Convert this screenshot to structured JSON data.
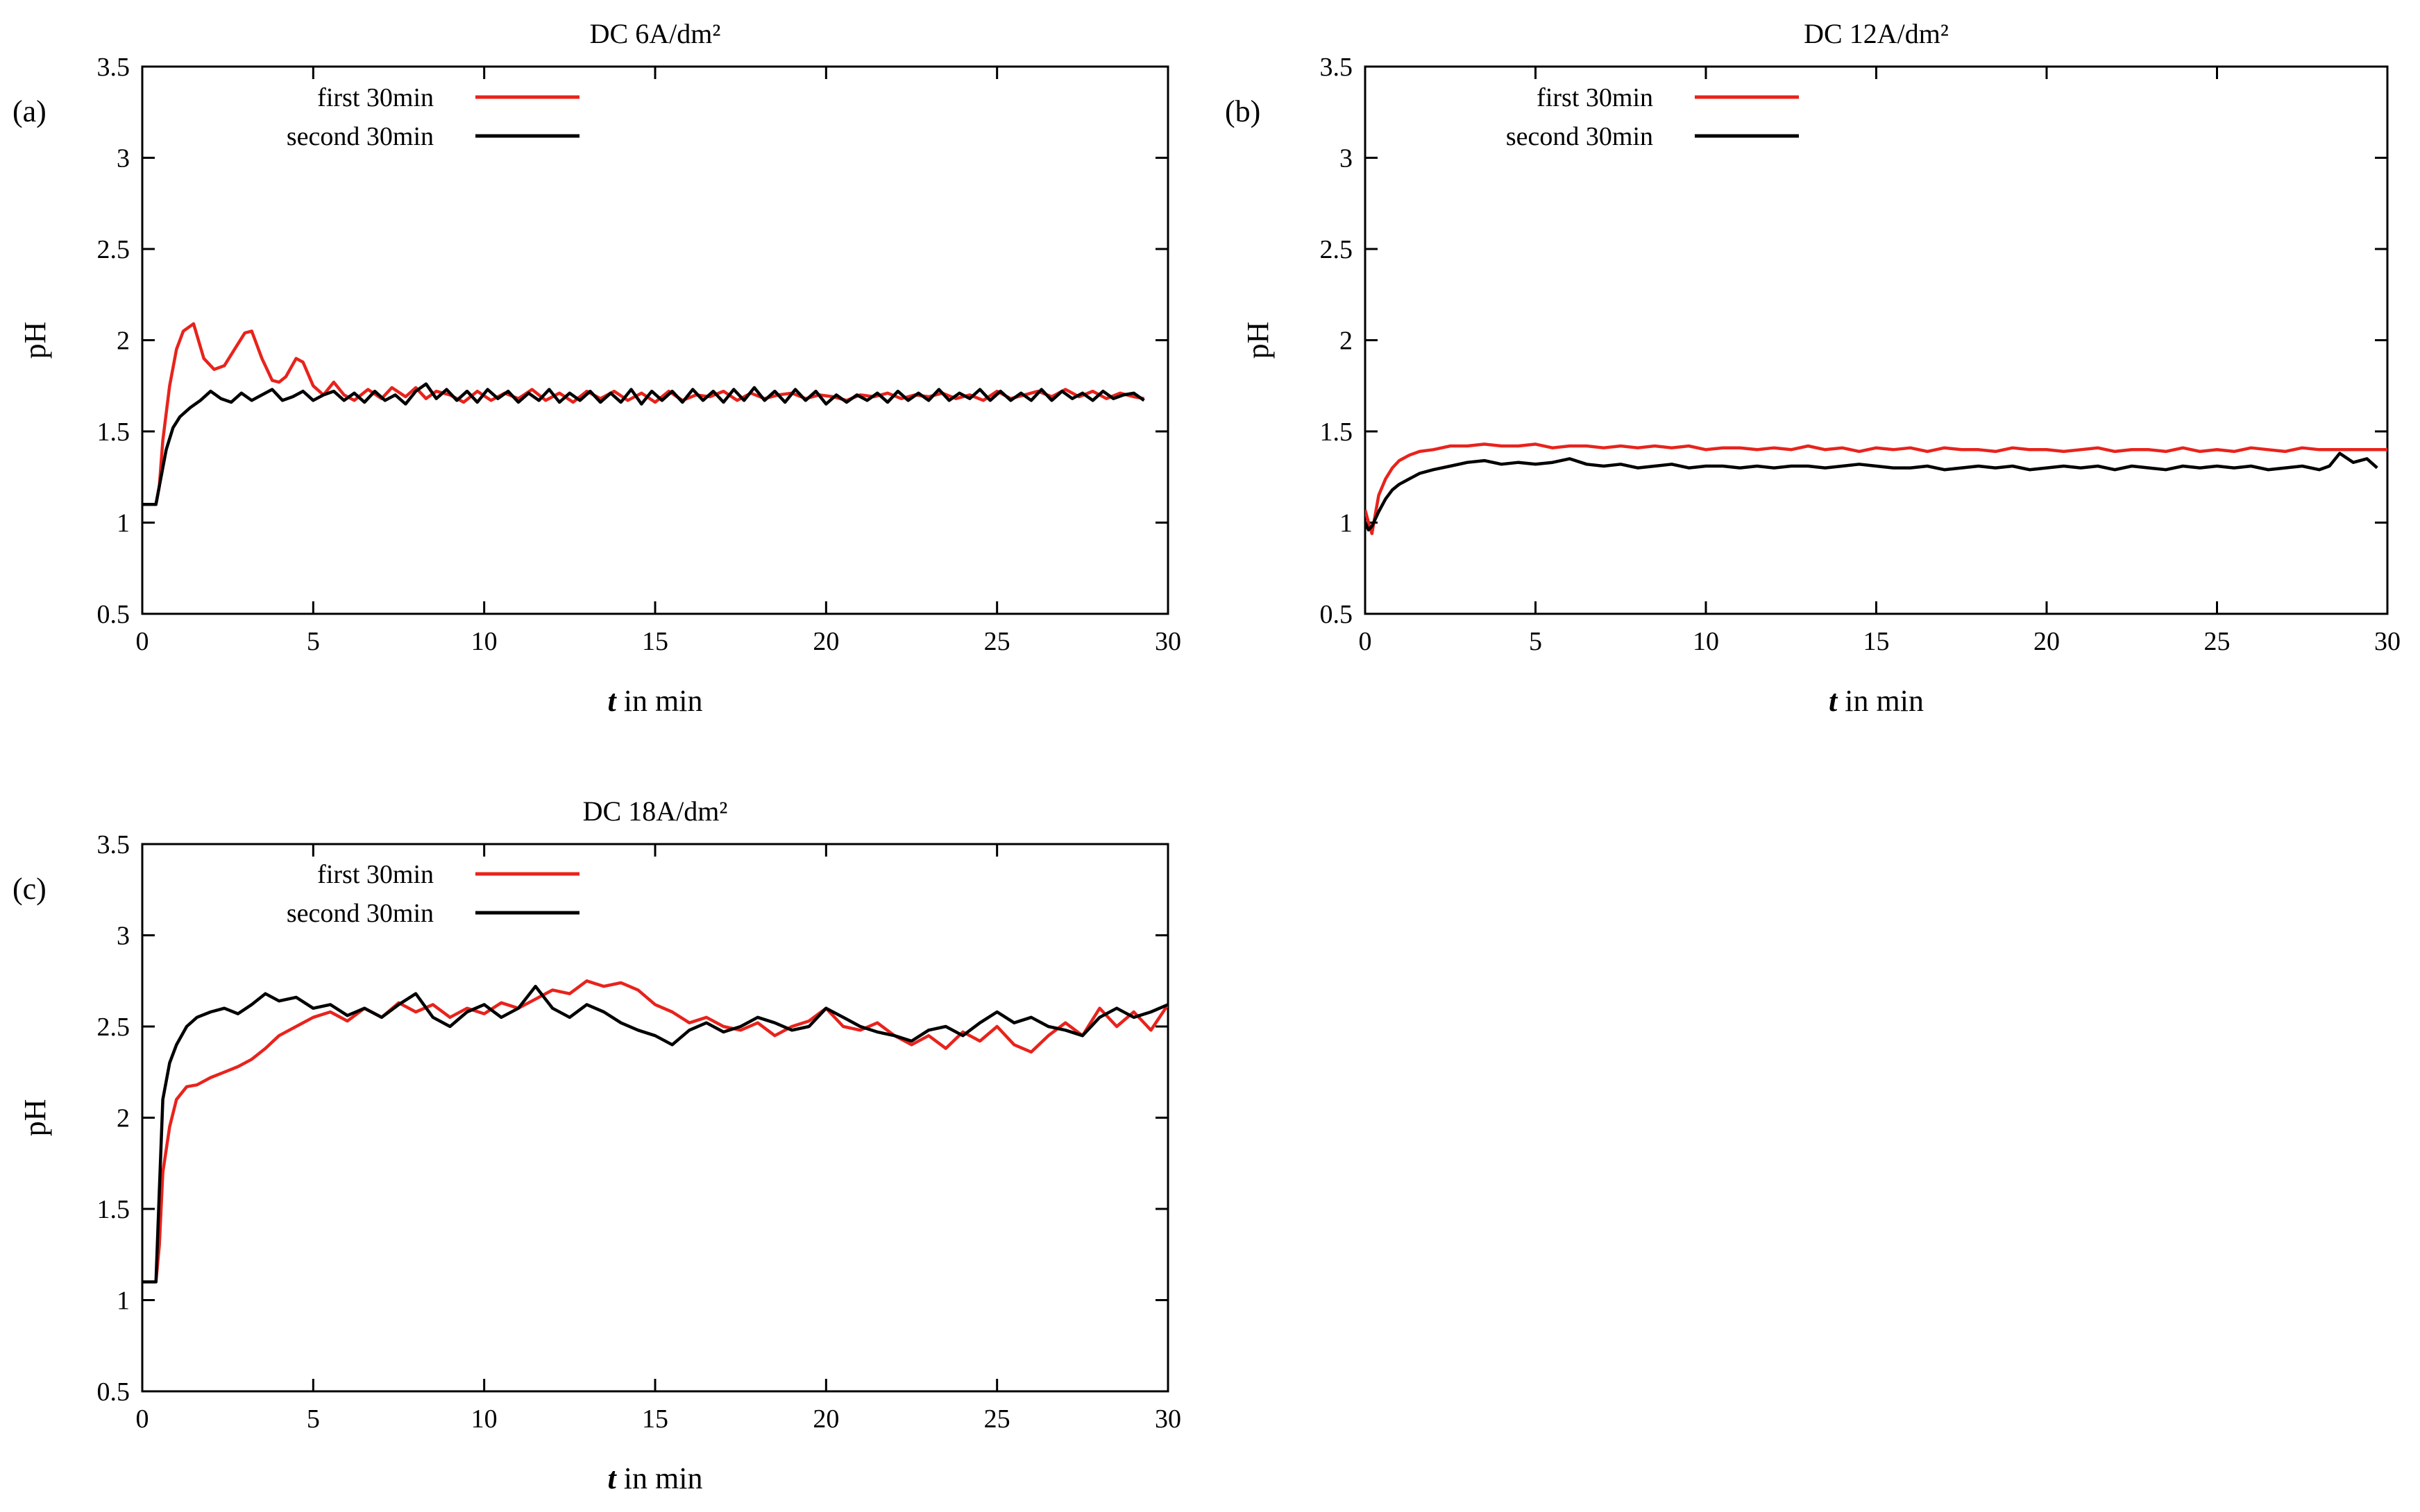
{
  "chart_data": [
    {
      "type": "line",
      "panel_label": "(a)",
      "title": "DC 6A/dm²",
      "xlabel": {
        "italic": "t",
        "rest": " in min"
      },
      "ylabel": "pH",
      "xlim": [
        0,
        30
      ],
      "ylim": [
        0.5,
        3.5
      ],
      "xticks": [
        0,
        5,
        10,
        15,
        20,
        25,
        30
      ],
      "xtick_labels": [
        "0",
        "5",
        "10",
        "15",
        "20",
        "25",
        "30"
      ],
      "yticks": [
        0.5,
        1,
        1.5,
        2,
        2.5,
        3,
        3.5
      ],
      "ytick_labels": [
        "0.5",
        "1",
        "1.5",
        "2",
        "2.5",
        "3",
        "3.5"
      ],
      "legend_position": "top-left",
      "series": [
        {
          "name": "first 30min",
          "color": "#e8231c",
          "x": [
            0,
            0.4,
            0.5,
            0.6,
            0.8,
            1.0,
            1.2,
            1.5,
            1.8,
            2.1,
            2.4,
            2.7,
            3.0,
            3.2,
            3.5,
            3.8,
            4.0,
            4.2,
            4.5,
            4.7,
            5.0,
            5.3,
            5.6,
            5.9,
            6.2,
            6.6,
            7.0,
            7.3,
            7.7,
            8.0,
            8.3,
            8.6,
            9.0,
            9.4,
            9.8,
            10.2,
            10.6,
            11.0,
            11.4,
            11.8,
            12.2,
            12.6,
            13.0,
            13.4,
            13.8,
            14.2,
            14.6,
            15.0,
            15.4,
            15.8,
            16.2,
            16.6,
            17.0,
            17.4,
            17.8,
            18.2,
            18.6,
            19.0,
            19.4,
            19.8,
            20.2,
            20.6,
            21.0,
            21.4,
            21.8,
            22.2,
            22.6,
            23.0,
            23.4,
            23.8,
            24.2,
            24.6,
            25.0,
            25.4,
            25.8,
            26.2,
            26.6,
            27.0,
            27.4,
            27.8,
            28.2,
            28.6,
            29.0,
            29.3
          ],
          "y": [
            1.1,
            1.1,
            1.2,
            1.45,
            1.75,
            1.95,
            2.05,
            2.09,
            1.9,
            1.84,
            1.86,
            1.95,
            2.04,
            2.05,
            1.9,
            1.78,
            1.77,
            1.8,
            1.9,
            1.88,
            1.75,
            1.7,
            1.77,
            1.7,
            1.67,
            1.73,
            1.68,
            1.74,
            1.69,
            1.74,
            1.68,
            1.72,
            1.7,
            1.66,
            1.72,
            1.67,
            1.71,
            1.68,
            1.73,
            1.67,
            1.71,
            1.66,
            1.72,
            1.68,
            1.72,
            1.67,
            1.71,
            1.66,
            1.72,
            1.67,
            1.7,
            1.69,
            1.72,
            1.67,
            1.71,
            1.68,
            1.7,
            1.71,
            1.68,
            1.7,
            1.69,
            1.67,
            1.7,
            1.69,
            1.71,
            1.68,
            1.7,
            1.69,
            1.71,
            1.68,
            1.7,
            1.67,
            1.72,
            1.68,
            1.7,
            1.72,
            1.69,
            1.73,
            1.69,
            1.72,
            1.68,
            1.71,
            1.69,
            1.68
          ]
        },
        {
          "name": "second 30min",
          "color": "#000000",
          "x": [
            0,
            0.4,
            0.5,
            0.7,
            0.9,
            1.1,
            1.4,
            1.7,
            2.0,
            2.3,
            2.6,
            2.9,
            3.2,
            3.5,
            3.8,
            4.1,
            4.4,
            4.7,
            5.0,
            5.3,
            5.6,
            5.9,
            6.2,
            6.5,
            6.8,
            7.1,
            7.4,
            7.7,
            8.0,
            8.3,
            8.6,
            8.9,
            9.2,
            9.5,
            9.8,
            10.1,
            10.4,
            10.7,
            11.0,
            11.3,
            11.6,
            11.9,
            12.2,
            12.5,
            12.8,
            13.1,
            13.4,
            13.7,
            14.0,
            14.3,
            14.6,
            14.9,
            15.2,
            15.5,
            15.8,
            16.1,
            16.4,
            16.7,
            17.0,
            17.3,
            17.6,
            17.9,
            18.2,
            18.5,
            18.8,
            19.1,
            19.4,
            19.7,
            20.0,
            20.3,
            20.6,
            20.9,
            21.2,
            21.5,
            21.8,
            22.1,
            22.4,
            22.7,
            23.0,
            23.3,
            23.6,
            23.9,
            24.2,
            24.5,
            24.8,
            25.1,
            25.4,
            25.7,
            26.0,
            26.3,
            26.6,
            26.9,
            27.2,
            27.5,
            27.8,
            28.1,
            28.4,
            28.7,
            29.0,
            29.3
          ],
          "y": [
            1.1,
            1.1,
            1.2,
            1.4,
            1.52,
            1.58,
            1.63,
            1.67,
            1.72,
            1.68,
            1.66,
            1.71,
            1.67,
            1.7,
            1.73,
            1.67,
            1.69,
            1.72,
            1.67,
            1.7,
            1.72,
            1.67,
            1.71,
            1.66,
            1.72,
            1.67,
            1.7,
            1.65,
            1.72,
            1.76,
            1.68,
            1.73,
            1.67,
            1.72,
            1.66,
            1.73,
            1.68,
            1.72,
            1.66,
            1.71,
            1.67,
            1.73,
            1.66,
            1.71,
            1.67,
            1.72,
            1.66,
            1.71,
            1.66,
            1.73,
            1.65,
            1.72,
            1.67,
            1.72,
            1.66,
            1.73,
            1.67,
            1.72,
            1.66,
            1.73,
            1.67,
            1.74,
            1.67,
            1.72,
            1.66,
            1.73,
            1.67,
            1.72,
            1.65,
            1.7,
            1.66,
            1.7,
            1.67,
            1.71,
            1.66,
            1.72,
            1.67,
            1.71,
            1.67,
            1.73,
            1.67,
            1.71,
            1.68,
            1.73,
            1.67,
            1.72,
            1.67,
            1.71,
            1.67,
            1.73,
            1.67,
            1.72,
            1.68,
            1.71,
            1.67,
            1.72,
            1.68,
            1.7,
            1.71,
            1.67
          ]
        }
      ]
    },
    {
      "type": "line",
      "panel_label": "(b)",
      "title": "DC 12A/dm²",
      "xlabel": {
        "italic": "t",
        "rest": " in min"
      },
      "ylabel": "pH",
      "xlim": [
        0,
        30
      ],
      "ylim": [
        0.5,
        3.5
      ],
      "xticks": [
        0,
        5,
        10,
        15,
        20,
        25,
        30
      ],
      "xtick_labels": [
        "0",
        "5",
        "10",
        "15",
        "20",
        "25",
        "30"
      ],
      "yticks": [
        0.5,
        1,
        1.5,
        2,
        2.5,
        3,
        3.5
      ],
      "ytick_labels": [
        "0.5",
        "1",
        "1.5",
        "2",
        "2.5",
        "3",
        "3.5"
      ],
      "legend_position": "top-center",
      "series": [
        {
          "name": "first 30min",
          "color": "#e8231c",
          "x": [
            0,
            0.1,
            0.2,
            0.4,
            0.6,
            0.8,
            1.0,
            1.3,
            1.6,
            2.0,
            2.5,
            3.0,
            3.5,
            4.0,
            4.5,
            5.0,
            5.5,
            6.0,
            6.5,
            7.0,
            7.5,
            8.0,
            8.5,
            9.0,
            9.5,
            10.0,
            10.5,
            11.0,
            11.5,
            12.0,
            12.5,
            13.0,
            13.5,
            14.0,
            14.5,
            15.0,
            15.5,
            16.0,
            16.5,
            17.0,
            17.5,
            18.0,
            18.5,
            19.0,
            19.5,
            20.0,
            20.5,
            21.0,
            21.5,
            22.0,
            22.5,
            23.0,
            23.5,
            24.0,
            24.5,
            25.0,
            25.5,
            26.0,
            26.5,
            27.0,
            27.5,
            28.0,
            28.5,
            29.0,
            30.0
          ],
          "y": [
            1.07,
            1.0,
            0.94,
            1.15,
            1.24,
            1.3,
            1.34,
            1.37,
            1.39,
            1.4,
            1.42,
            1.42,
            1.43,
            1.42,
            1.42,
            1.43,
            1.41,
            1.42,
            1.42,
            1.41,
            1.42,
            1.41,
            1.42,
            1.41,
            1.42,
            1.4,
            1.41,
            1.41,
            1.4,
            1.41,
            1.4,
            1.42,
            1.4,
            1.41,
            1.39,
            1.41,
            1.4,
            1.41,
            1.39,
            1.41,
            1.4,
            1.4,
            1.39,
            1.41,
            1.4,
            1.4,
            1.39,
            1.4,
            1.41,
            1.39,
            1.4,
            1.4,
            1.39,
            1.41,
            1.39,
            1.4,
            1.39,
            1.41,
            1.4,
            1.39,
            1.41,
            1.4,
            1.4,
            1.4,
            1.4
          ]
        },
        {
          "name": "second 30min",
          "color": "#000000",
          "x": [
            0,
            0.1,
            0.2,
            0.4,
            0.6,
            0.8,
            1.0,
            1.3,
            1.6,
            2.0,
            2.5,
            3.0,
            3.5,
            4.0,
            4.5,
            5.0,
            5.5,
            6.0,
            6.5,
            7.0,
            7.5,
            8.0,
            8.5,
            9.0,
            9.5,
            10.0,
            10.5,
            11.0,
            11.5,
            12.0,
            12.5,
            13.0,
            13.5,
            14.0,
            14.5,
            15.0,
            15.5,
            16.0,
            16.5,
            17.0,
            17.5,
            18.0,
            18.5,
            19.0,
            19.5,
            20.0,
            20.5,
            21.0,
            21.5,
            22.0,
            22.5,
            23.0,
            23.5,
            24.0,
            24.5,
            25.0,
            25.5,
            26.0,
            26.5,
            27.0,
            27.5,
            28.0,
            28.3,
            28.6,
            29.0,
            29.4,
            29.7
          ],
          "y": [
            1.0,
            0.96,
            0.98,
            1.06,
            1.13,
            1.18,
            1.21,
            1.24,
            1.27,
            1.29,
            1.31,
            1.33,
            1.34,
            1.32,
            1.33,
            1.32,
            1.33,
            1.35,
            1.32,
            1.31,
            1.32,
            1.3,
            1.31,
            1.32,
            1.3,
            1.31,
            1.31,
            1.3,
            1.31,
            1.3,
            1.31,
            1.31,
            1.3,
            1.31,
            1.32,
            1.31,
            1.3,
            1.3,
            1.31,
            1.29,
            1.3,
            1.31,
            1.3,
            1.31,
            1.29,
            1.3,
            1.31,
            1.3,
            1.31,
            1.29,
            1.31,
            1.3,
            1.29,
            1.31,
            1.3,
            1.31,
            1.3,
            1.31,
            1.29,
            1.3,
            1.31,
            1.29,
            1.31,
            1.38,
            1.33,
            1.35,
            1.3
          ]
        }
      ]
    },
    {
      "type": "line",
      "panel_label": "(c)",
      "title": "DC 18A/dm²",
      "xlabel": {
        "italic": "t",
        "rest": " in min"
      },
      "ylabel": "pH",
      "xlim": [
        0,
        30
      ],
      "ylim": [
        0.5,
        3.5
      ],
      "xticks": [
        0,
        5,
        10,
        15,
        20,
        25,
        30
      ],
      "xtick_labels": [
        "0",
        "5",
        "10",
        "15",
        "20",
        "25",
        "30"
      ],
      "yticks": [
        0.5,
        1,
        1.5,
        2,
        2.5,
        3,
        3.5
      ],
      "ytick_labels": [
        "0.5",
        "1",
        "1.5",
        "2",
        "2.5",
        "3",
        "3.5"
      ],
      "legend_position": "top-left",
      "series": [
        {
          "name": "first 30min",
          "color": "#e8231c",
          "x": [
            0,
            0.4,
            0.5,
            0.6,
            0.8,
            1.0,
            1.3,
            1.6,
            2.0,
            2.4,
            2.8,
            3.2,
            3.6,
            4.0,
            4.5,
            5.0,
            5.5,
            6.0,
            6.5,
            7.0,
            7.5,
            8.0,
            8.5,
            9.0,
            9.5,
            10.0,
            10.5,
            11.0,
            11.5,
            12.0,
            12.5,
            13.0,
            13.5,
            14.0,
            14.5,
            15.0,
            15.5,
            16.0,
            16.5,
            17.0,
            17.5,
            18.0,
            18.5,
            19.0,
            19.5,
            20.0,
            20.5,
            21.0,
            21.5,
            22.0,
            22.5,
            23.0,
            23.5,
            24.0,
            24.5,
            25.0,
            25.5,
            26.0,
            26.5,
            27.0,
            27.5,
            28.0,
            28.5,
            29.0,
            29.5,
            30.0
          ],
          "y": [
            1.1,
            1.1,
            1.3,
            1.7,
            1.95,
            2.1,
            2.17,
            2.18,
            2.22,
            2.25,
            2.28,
            2.32,
            2.38,
            2.45,
            2.5,
            2.55,
            2.58,
            2.53,
            2.6,
            2.55,
            2.63,
            2.58,
            2.62,
            2.55,
            2.6,
            2.57,
            2.63,
            2.6,
            2.65,
            2.7,
            2.68,
            2.75,
            2.72,
            2.74,
            2.7,
            2.62,
            2.58,
            2.52,
            2.55,
            2.5,
            2.48,
            2.52,
            2.45,
            2.5,
            2.53,
            2.6,
            2.5,
            2.48,
            2.52,
            2.45,
            2.4,
            2.45,
            2.38,
            2.47,
            2.42,
            2.5,
            2.4,
            2.36,
            2.45,
            2.52,
            2.45,
            2.6,
            2.5,
            2.58,
            2.48,
            2.62
          ]
        },
        {
          "name": "second 30min",
          "color": "#000000",
          "x": [
            0,
            0.4,
            0.5,
            0.6,
            0.8,
            1.0,
            1.3,
            1.6,
            2.0,
            2.4,
            2.8,
            3.2,
            3.6,
            4.0,
            4.5,
            5.0,
            5.5,
            6.0,
            6.5,
            7.0,
            7.5,
            8.0,
            8.5,
            9.0,
            9.5,
            10.0,
            10.5,
            11.0,
            11.5,
            12.0,
            12.5,
            13.0,
            13.5,
            14.0,
            14.5,
            15.0,
            15.5,
            16.0,
            16.5,
            17.0,
            17.5,
            18.0,
            18.5,
            19.0,
            19.5,
            20.0,
            20.5,
            21.0,
            21.5,
            22.0,
            22.5,
            23.0,
            23.5,
            24.0,
            24.5,
            25.0,
            25.5,
            26.0,
            26.5,
            27.0,
            27.5,
            28.0,
            28.5,
            29.0,
            29.5,
            30.0
          ],
          "y": [
            1.1,
            1.1,
            1.6,
            2.1,
            2.3,
            2.4,
            2.5,
            2.55,
            2.58,
            2.6,
            2.57,
            2.62,
            2.68,
            2.64,
            2.66,
            2.6,
            2.62,
            2.56,
            2.6,
            2.55,
            2.62,
            2.68,
            2.55,
            2.5,
            2.58,
            2.62,
            2.55,
            2.6,
            2.72,
            2.6,
            2.55,
            2.62,
            2.58,
            2.52,
            2.48,
            2.45,
            2.4,
            2.48,
            2.52,
            2.47,
            2.5,
            2.55,
            2.52,
            2.48,
            2.5,
            2.6,
            2.55,
            2.5,
            2.47,
            2.45,
            2.42,
            2.48,
            2.5,
            2.45,
            2.52,
            2.58,
            2.52,
            2.55,
            2.5,
            2.48,
            2.45,
            2.55,
            2.6,
            2.55,
            2.58,
            2.62
          ]
        }
      ]
    }
  ]
}
